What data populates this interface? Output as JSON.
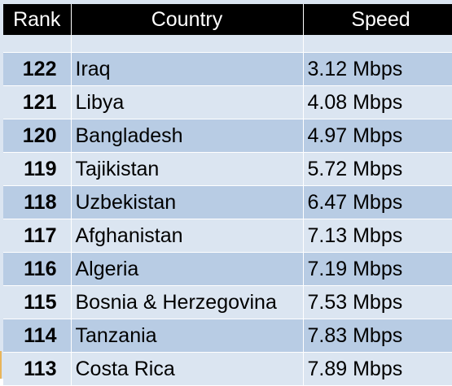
{
  "table": {
    "headers": {
      "rank": "Rank",
      "country": "Country",
      "speed": "Speed"
    },
    "rows": [
      {
        "rank": "122",
        "country": "Iraq",
        "speed": "3.12 Mbps"
      },
      {
        "rank": "121",
        "country": "Libya",
        "speed": "4.08 Mbps"
      },
      {
        "rank": "120",
        "country": "Bangladesh",
        "speed": "4.97 Mbps"
      },
      {
        "rank": "119",
        "country": "Tajikistan",
        "speed": "5.72 Mbps"
      },
      {
        "rank": "118",
        "country": "Uzbekistan",
        "speed": "6.47 Mbps"
      },
      {
        "rank": "117",
        "country": "Afghanistan",
        "speed": "7.13 Mbps"
      },
      {
        "rank": "116",
        "country": "Algeria",
        "speed": "7.19 Mbps"
      },
      {
        "rank": "115",
        "country": "Bosnia & Herzegovina",
        "speed": "7.53 Mbps"
      },
      {
        "rank": "114",
        "country": "Tanzania",
        "speed": "7.83 Mbps"
      },
      {
        "rank": "113",
        "country": "Costa Rica",
        "speed": "7.89 Mbps"
      }
    ]
  },
  "colors": {
    "header_bg": "#000000",
    "header_text": "#ffffff",
    "row_dark": "#b8cce4",
    "row_light": "#dbe5f1"
  }
}
